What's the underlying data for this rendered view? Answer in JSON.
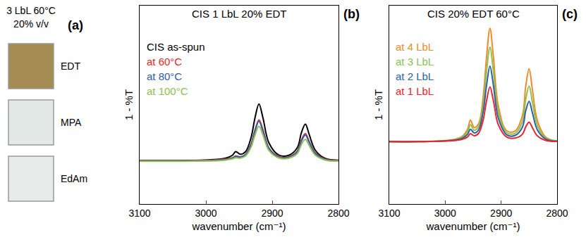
{
  "panel_a": {
    "label": "(a)",
    "title_lines": [
      "3 LbL 60°C",
      "20% v/v"
    ],
    "samples": [
      {
        "name": "EDT",
        "color": "#a48c52"
      },
      {
        "name": "MPA",
        "color": "#e2e9e6"
      },
      {
        "name": "EdAm",
        "color": "#e6ebe9"
      }
    ]
  },
  "chart_data": [
    {
      "type": "line",
      "panel_label": "(b)",
      "title": "CIS 1 LbL 20% EDT",
      "xlabel": "wavenumber (cm⁻¹)",
      "ylabel": "1 - %T",
      "x": [
        3100,
        3050,
        3000,
        2980,
        2970,
        2960,
        2955,
        2948,
        2940,
        2932,
        2926,
        2920,
        2914,
        2905,
        2890,
        2875,
        2862,
        2856,
        2850,
        2844,
        2835,
        2820,
        2800
      ],
      "xlim": [
        3100,
        2800
      ],
      "xticks": [
        3100,
        3000,
        2900,
        2800
      ],
      "ylim": [
        0,
        1.05
      ],
      "tick_labels": "x",
      "grid": false,
      "legend": "upper left",
      "series": [
        {
          "name": "CIS as-spun",
          "color": "#000000",
          "values": [
            0.23,
            0.23,
            0.233,
            0.237,
            0.243,
            0.258,
            0.277,
            0.263,
            0.278,
            0.35,
            0.455,
            0.53,
            0.457,
            0.324,
            0.259,
            0.258,
            0.299,
            0.377,
            0.423,
            0.366,
            0.285,
            0.241,
            0.232
          ]
        },
        {
          "name": "at 60°C",
          "color": "#e8262b",
          "values": [
            0.23,
            0.23,
            0.232,
            0.235,
            0.238,
            0.245,
            0.254,
            0.25,
            0.263,
            0.316,
            0.391,
            0.445,
            0.393,
            0.297,
            0.251,
            0.25,
            0.281,
            0.338,
            0.372,
            0.33,
            0.27,
            0.238,
            0.231
          ]
        },
        {
          "name": "at 80°C",
          "color": "#2e5ea8",
          "values": [
            0.228,
            0.228,
            0.23,
            0.233,
            0.236,
            0.243,
            0.251,
            0.248,
            0.261,
            0.312,
            0.386,
            0.438,
            0.387,
            0.294,
            0.248,
            0.248,
            0.277,
            0.332,
            0.365,
            0.325,
            0.267,
            0.236,
            0.229
          ]
        },
        {
          "name": "at 100°C",
          "color": "#8cc152",
          "values": [
            0.226,
            0.226,
            0.228,
            0.23,
            0.233,
            0.239,
            0.245,
            0.243,
            0.255,
            0.3,
            0.365,
            0.411,
            0.366,
            0.284,
            0.244,
            0.243,
            0.268,
            0.315,
            0.343,
            0.308,
            0.259,
            0.233,
            0.227
          ]
        }
      ]
    },
    {
      "type": "line",
      "panel_label": "(c)",
      "title": "CIS 20% EDT 60°C",
      "xlabel": "wavenumber (cm⁻¹)",
      "ylabel": "1 - %T",
      "x": [
        3100,
        3050,
        3000,
        2980,
        2970,
        2960,
        2955,
        2948,
        2940,
        2932,
        2926,
        2920,
        2914,
        2905,
        2890,
        2875,
        2862,
        2856,
        2850,
        2844,
        2835,
        2820,
        2800
      ],
      "xlim": [
        3100,
        2800
      ],
      "xticks": [
        3100,
        3000,
        2900,
        2800
      ],
      "ylim": [
        0,
        1.05
      ],
      "tick_labels": "x",
      "grid": false,
      "legend": "upper left",
      "series": [
        {
          "name": "at 4 LbL",
          "color": "#f08a24",
          "values": [
            0.33,
            0.33,
            0.336,
            0.345,
            0.357,
            0.396,
            0.444,
            0.404,
            0.427,
            0.57,
            0.78,
            0.93,
            0.784,
            0.518,
            0.387,
            0.386,
            0.467,
            0.624,
            0.716,
            0.602,
            0.439,
            0.353,
            0.334
          ]
        },
        {
          "name": "at 3 LbL",
          "color": "#8cc152",
          "values": [
            0.33,
            0.33,
            0.335,
            0.342,
            0.352,
            0.383,
            0.42,
            0.39,
            0.411,
            0.53,
            0.705,
            0.83,
            0.708,
            0.486,
            0.377,
            0.374,
            0.436,
            0.555,
            0.625,
            0.538,
            0.414,
            0.347,
            0.333
          ]
        },
        {
          "name": "at 2 LbL",
          "color": "#2e5ea8",
          "values": [
            0.33,
            0.33,
            0.334,
            0.34,
            0.347,
            0.369,
            0.396,
            0.376,
            0.394,
            0.49,
            0.63,
            0.73,
            0.632,
            0.454,
            0.366,
            0.363,
            0.407,
            0.494,
            0.544,
            0.481,
            0.391,
            0.343,
            0.332
          ]
        },
        {
          "name": "at 1 LbL",
          "color": "#e8262b",
          "values": [
            0.33,
            0.33,
            0.333,
            0.337,
            0.342,
            0.355,
            0.372,
            0.361,
            0.376,
            0.446,
            0.548,
            0.62,
            0.549,
            0.419,
            0.354,
            0.349,
            0.369,
            0.409,
            0.433,
            0.403,
            0.36,
            0.336,
            0.331
          ]
        }
      ]
    }
  ]
}
